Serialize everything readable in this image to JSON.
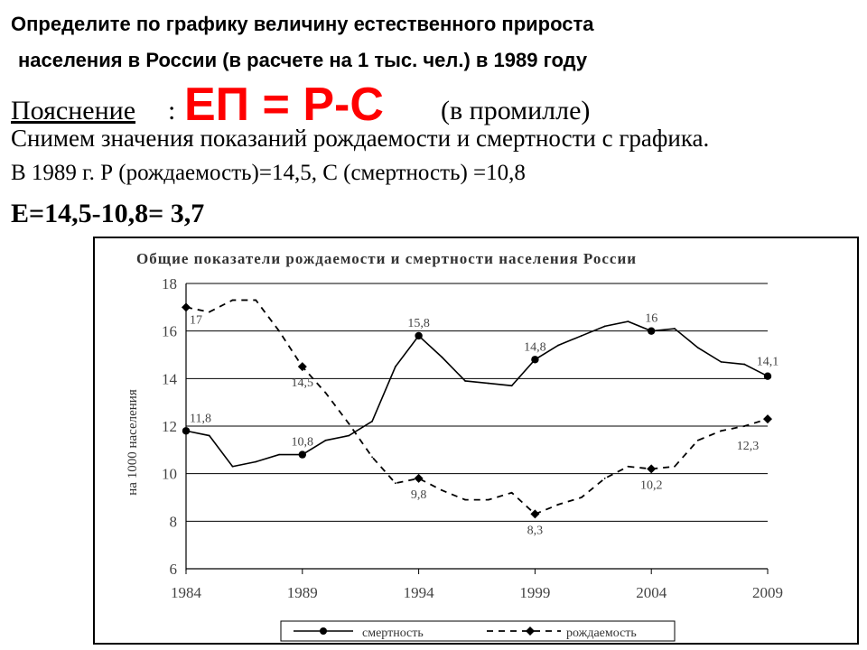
{
  "question": {
    "line1": "Определите по графику величину естественного прироста",
    "line2": "населения в России (в расчете на 1 тыс. чел.) в 1989 году"
  },
  "explanation": {
    "label": "Пояснение",
    "colon": ":",
    "formula": "ЕП = Р-С",
    "unit": "(в промилле)",
    "step": "Снимем значения показаний рождаемости и смертности с графика.",
    "values_line": "В 1989 г. Р (рождаемость)=14,5, С (смертность) =10,8",
    "result": "Е=14,5-10,8= 3,7"
  },
  "chart_data": {
    "type": "line",
    "title": "Общие показатели рождаемости и смертности населения России",
    "ylabel": "на 1000 населения",
    "xlabel": "",
    "ylim": [
      6,
      18
    ],
    "yticks": [
      "6",
      "8",
      "10",
      "12",
      "14",
      "16",
      "18"
    ],
    "xlim": [
      1984,
      2009
    ],
    "xticks": [
      "1984",
      "1989",
      "1994",
      "1999",
      "2004",
      "2009"
    ],
    "grid": "horizontal",
    "legend_position": "bottom",
    "series": [
      {
        "name": "смертность",
        "style": "solid",
        "color": "#000000",
        "x": [
          1984,
          1985,
          1986,
          1987,
          1988,
          1989,
          1990,
          1991,
          1992,
          1993,
          1994,
          1995,
          1996,
          1997,
          1998,
          1999,
          2000,
          2001,
          2002,
          2003,
          2004,
          2005,
          2006,
          2007,
          2008,
          2009
        ],
        "values": [
          11.8,
          11.6,
          10.3,
          10.5,
          10.8,
          10.8,
          11.4,
          11.6,
          12.2,
          14.5,
          15.8,
          14.9,
          13.9,
          13.8,
          13.7,
          14.8,
          15.4,
          15.8,
          16.2,
          16.4,
          16.0,
          16.1,
          15.3,
          14.7,
          14.6,
          14.1
        ]
      },
      {
        "name": "рождаемость",
        "style": "dashed",
        "color": "#000000",
        "x": [
          1984,
          1985,
          1986,
          1987,
          1988,
          1989,
          1990,
          1991,
          1992,
          1993,
          1994,
          1995,
          1996,
          1997,
          1998,
          1999,
          2000,
          2001,
          2002,
          2003,
          2004,
          2005,
          2006,
          2007,
          2008,
          2009
        ],
        "values": [
          17.0,
          16.8,
          17.3,
          17.3,
          16.0,
          14.5,
          13.4,
          12.1,
          10.7,
          9.6,
          9.8,
          9.3,
          8.9,
          8.9,
          9.2,
          8.3,
          8.7,
          9.0,
          9.8,
          10.3,
          10.2,
          10.3,
          11.4,
          11.8,
          12.0,
          12.3
        ]
      }
    ],
    "annotations": [
      {
        "text": "17",
        "series": "рождаемость",
        "x": 1984,
        "y": 17.0,
        "pos": "below-right"
      },
      {
        "text": "11,8",
        "series": "смертность",
        "x": 1984,
        "y": 11.8,
        "pos": "above-right"
      },
      {
        "text": "10,8",
        "series": "смертность",
        "x": 1989,
        "y": 10.8,
        "pos": "above"
      },
      {
        "text": "14,5",
        "series": "рождаемость",
        "x": 1989,
        "y": 14.5,
        "pos": "below"
      },
      {
        "text": "15,8",
        "series": "смертность",
        "x": 1994,
        "y": 15.8,
        "pos": "above"
      },
      {
        "text": "9,8",
        "series": "рождаемость",
        "x": 1994,
        "y": 9.8,
        "pos": "below"
      },
      {
        "text": "14,8",
        "series": "смертность",
        "x": 1999,
        "y": 14.8,
        "pos": "above"
      },
      {
        "text": "8,3",
        "series": "рождаемость",
        "x": 1999,
        "y": 8.3,
        "pos": "below"
      },
      {
        "text": "16",
        "series": "смертность",
        "x": 2004,
        "y": 16.0,
        "pos": "above"
      },
      {
        "text": "10,2",
        "series": "рождаемость",
        "x": 2004,
        "y": 10.2,
        "pos": "below"
      },
      {
        "text": "14,1",
        "series": "смертность",
        "x": 2009,
        "y": 14.1,
        "pos": "above-left"
      },
      {
        "text": "12,3",
        "series": "рождаемость",
        "x": 2009,
        "y": 12.3,
        "pos": "below-left"
      }
    ]
  }
}
